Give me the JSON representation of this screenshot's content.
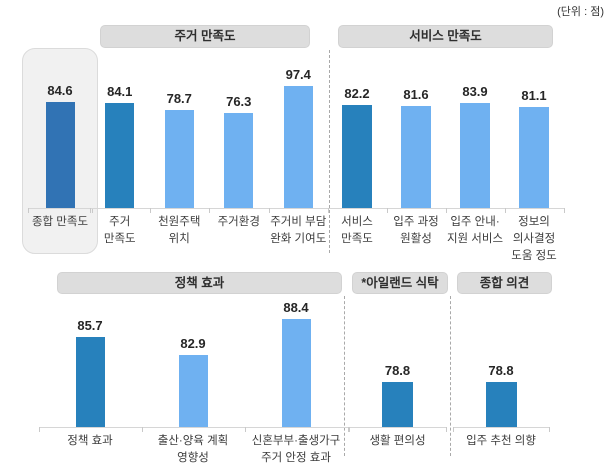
{
  "meta": {
    "unit_note": "(단위 : 점)"
  },
  "colors": {
    "bar_overall": "#3173B4",
    "bar_dark": "#2781BC",
    "bar_light": "#6FB1F1",
    "header_bg": "#DDDDDD",
    "overall_box_bg": "#F1F1F1"
  },
  "chart_data": {
    "type": "bar",
    "unit": "점",
    "value_labels_shown": true,
    "y_axis_visible": false,
    "legend": null,
    "groups": [
      {
        "id": "overall",
        "header": null,
        "items": [
          {
            "label_lines": [
              "종합 만족도"
            ],
            "value": 84.6,
            "tone": "overall"
          }
        ]
      },
      {
        "id": "housing",
        "header": "주거 만족도",
        "items": [
          {
            "label_lines": [
              "주거",
              "만족도"
            ],
            "value": 84.1,
            "tone": "dark"
          },
          {
            "label_lines": [
              "천원주택",
              "위치"
            ],
            "value": 78.7,
            "tone": "light"
          },
          {
            "label_lines": [
              "주거환경"
            ],
            "value": 76.3,
            "tone": "light"
          },
          {
            "label_lines": [
              "주거비 부담",
              "완화 기여도"
            ],
            "value": 97.4,
            "tone": "light"
          }
        ]
      },
      {
        "id": "service",
        "header": "서비스 만족도",
        "items": [
          {
            "label_lines": [
              "서비스",
              "만족도"
            ],
            "value": 82.2,
            "tone": "dark"
          },
          {
            "label_lines": [
              "입주 과정",
              "원활성"
            ],
            "value": 81.6,
            "tone": "light"
          },
          {
            "label_lines": [
              "입주 안내·",
              "지원 서비스"
            ],
            "value": 83.9,
            "tone": "light"
          },
          {
            "label_lines": [
              "정보의",
              "의사결정",
              "도움 정도"
            ],
            "value": 81.1,
            "tone": "light"
          }
        ]
      },
      {
        "id": "policy",
        "header": "정책 효과",
        "items": [
          {
            "label_lines": [
              "정책 효과"
            ],
            "value": 85.7,
            "tone": "dark"
          },
          {
            "label_lines": [
              "출산·양육 계획",
              "영향성"
            ],
            "value": 82.9,
            "tone": "light"
          },
          {
            "label_lines": [
              "신혼부부·출생가구",
              "주거 안정 효과"
            ],
            "value": 88.4,
            "tone": "light"
          }
        ]
      },
      {
        "id": "island",
        "header": "*아일랜드 식탁",
        "items": [
          {
            "label_lines": [
              "생활 편의성"
            ],
            "value": 78.8,
            "tone": "dark"
          }
        ]
      },
      {
        "id": "opinion",
        "header": "종합 의견",
        "items": [
          {
            "label_lines": [
              "입주 추천 의향"
            ],
            "value": 78.8,
            "tone": "dark"
          }
        ]
      }
    ]
  }
}
